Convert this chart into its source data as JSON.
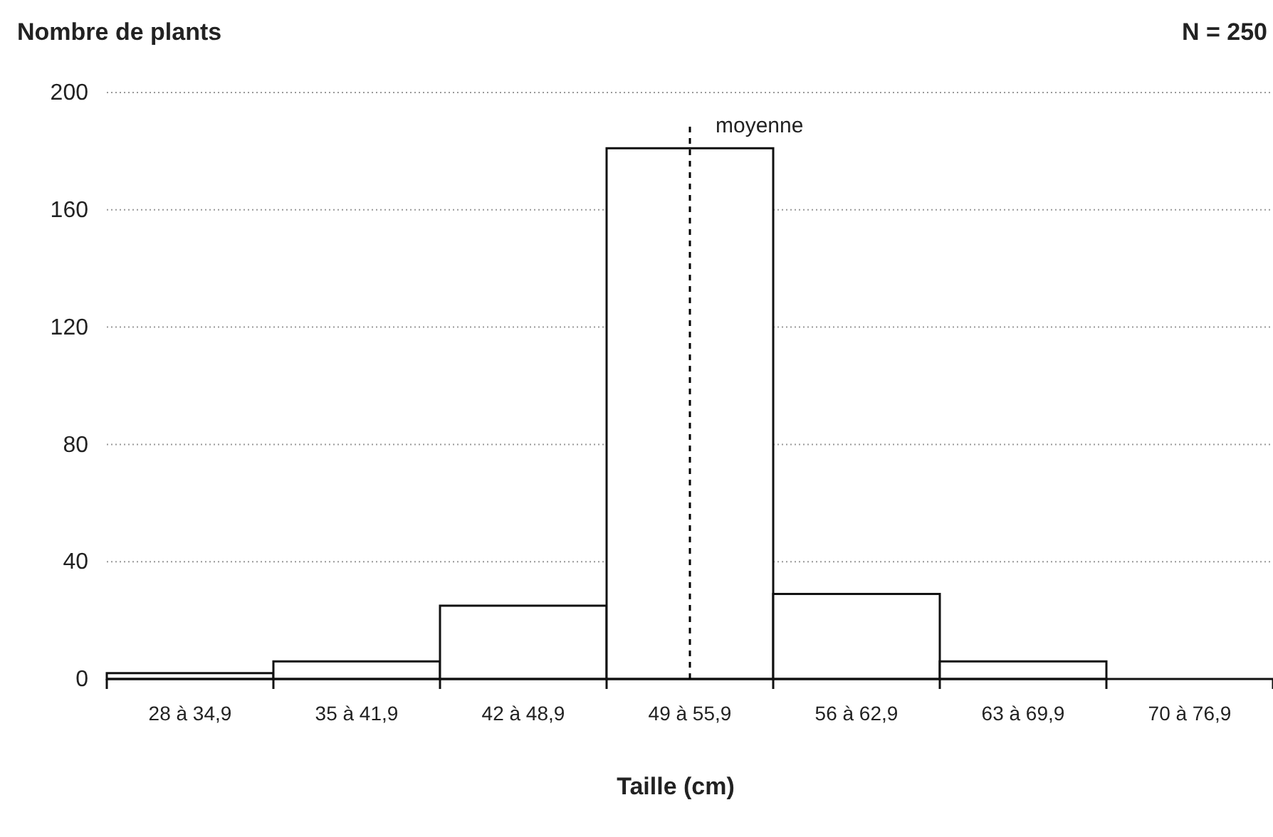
{
  "chart_data": {
    "type": "bar",
    "title": "Nombre de plants",
    "xlabel": "Taille (cm)",
    "annotations": [
      "N = 250"
    ],
    "categories": [
      "28 à 34,9",
      "35 à 41,9",
      "42 à 48,9",
      "49 à 55,9",
      "56 à 62,9",
      "63 à 69,9",
      "70 à 76,9"
    ],
    "values": [
      2,
      6,
      25,
      181,
      29,
      6,
      0
    ],
    "color": "#ffffff",
    "ylim": [
      0,
      200
    ],
    "yticks": [
      0,
      40,
      80,
      120,
      160,
      200
    ],
    "grid": "y",
    "ref_lines": [
      {
        "axis": "x",
        "value": "49 à 55,9",
        "label": "moyenne",
        "line_style": "dashed",
        "color": "#000000"
      }
    ]
  }
}
